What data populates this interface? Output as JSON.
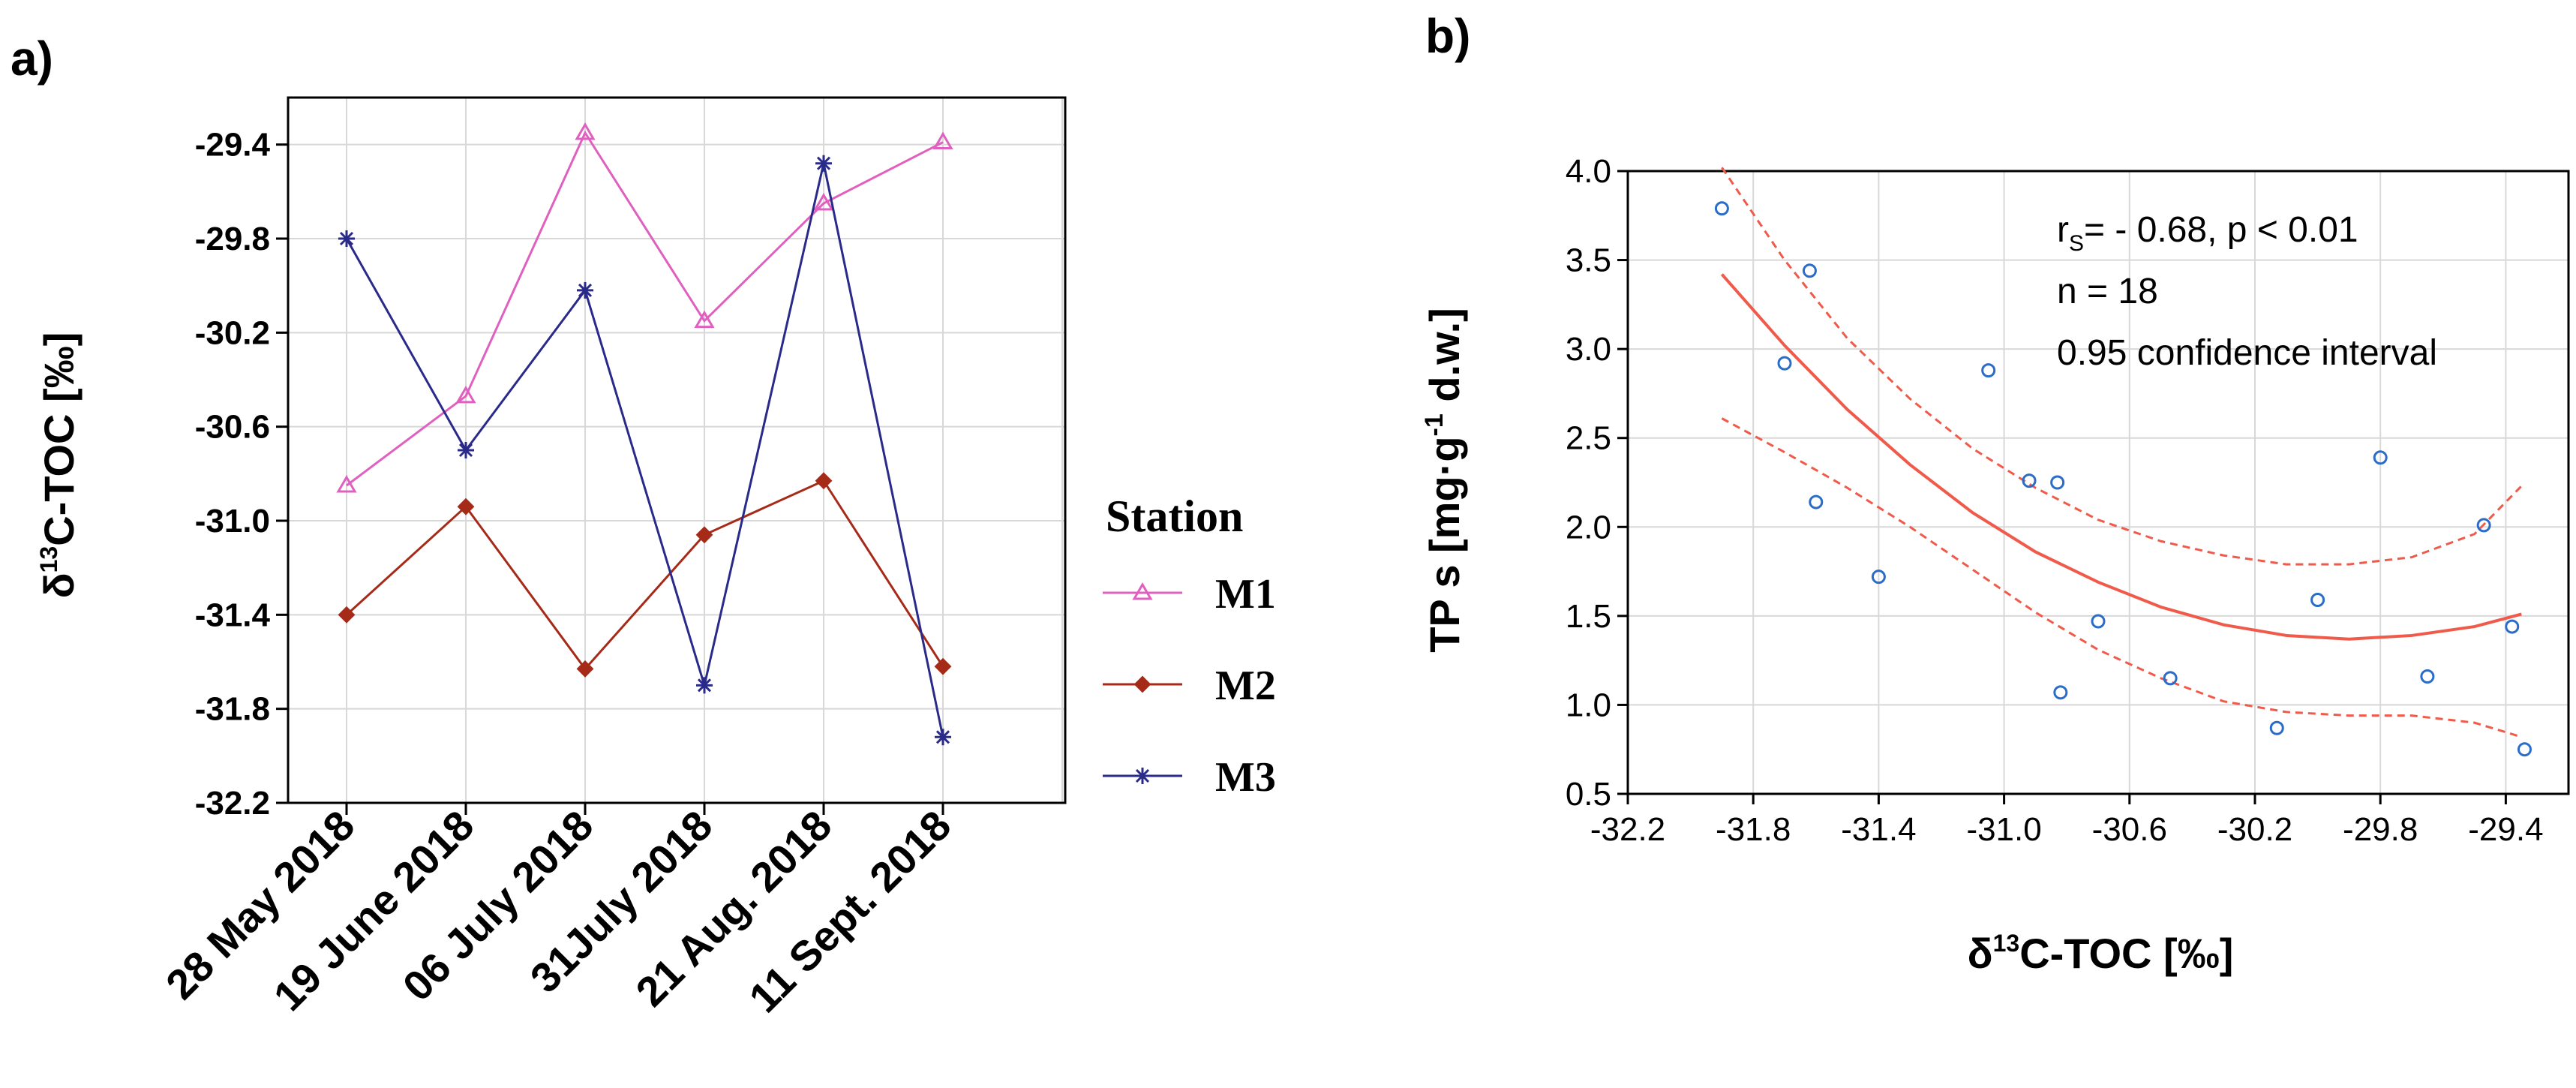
{
  "chart_data": [
    {
      "panel_label": "a)",
      "type": "line",
      "categories": [
        "28 May 2018",
        "19 June 2018",
        "06 July 2018",
        "31July 2018",
        "21 Aug. 2018",
        "11 Sept. 2018"
      ],
      "series": [
        {
          "name": "M1",
          "color": "#e060c0",
          "marker": "triangle",
          "values": [
            -30.85,
            -30.47,
            -29.35,
            -30.15,
            -29.65,
            -29.39
          ]
        },
        {
          "name": "M2",
          "color": "#a52a18",
          "marker": "diamond",
          "values": [
            -31.4,
            -30.94,
            -31.63,
            -31.06,
            -30.83,
            -31.62
          ]
        },
        {
          "name": "M3",
          "color": "#2a2a8a",
          "marker": "asterisk",
          "values": [
            -29.8,
            -30.7,
            -30.02,
            -31.7,
            -29.48,
            -31.92
          ]
        }
      ],
      "title": "",
      "xlabel": "",
      "ylabel_prefix": "δ",
      "ylabel_sup": "13",
      "ylabel_main": "C-TOC [‰]",
      "ylim": [
        -32.2,
        -29.2
      ],
      "yticks": [
        "-29.4",
        "-29.8",
        "-30.2",
        "-30.6",
        "-31.0",
        "-31.4",
        "-31.8",
        "-32.2"
      ],
      "ytick_values": [
        -29.4,
        -29.8,
        -30.2,
        -30.6,
        -31.0,
        -31.4,
        -31.8,
        -32.2
      ],
      "legend_title": "Station",
      "legend_position": "right",
      "grid": true
    },
    {
      "panel_label": "b)",
      "type": "scatter",
      "x": [
        -31.9,
        -31.7,
        -31.62,
        -31.6,
        -31.4,
        -31.05,
        -30.92,
        -30.83,
        -30.82,
        -30.7,
        -30.47,
        -30.13,
        -30.0,
        -29.8,
        -29.65,
        -29.47,
        -29.38,
        -29.34
      ],
      "y": [
        3.79,
        2.92,
        3.44,
        2.14,
        1.72,
        2.88,
        2.26,
        2.25,
        1.07,
        1.47,
        1.15,
        0.87,
        1.59,
        2.39,
        1.16,
        2.01,
        1.44,
        0.75
      ],
      "fit_x": [
        -31.9,
        -31.7,
        -31.5,
        -31.3,
        -31.1,
        -30.9,
        -30.7,
        -30.5,
        -30.3,
        -30.1,
        -29.9,
        -29.7,
        -29.5,
        -29.35
      ],
      "fit_y": [
        3.42,
        3.02,
        2.66,
        2.35,
        2.08,
        1.86,
        1.69,
        1.55,
        1.45,
        1.39,
        1.37,
        1.39,
        1.44,
        1.51
      ],
      "ci_upper": [
        4.02,
        3.5,
        3.06,
        2.72,
        2.44,
        2.22,
        2.04,
        1.92,
        1.84,
        1.79,
        1.79,
        1.83,
        1.96,
        2.23
      ],
      "ci_lower": [
        2.61,
        2.42,
        2.22,
        2.0,
        1.76,
        1.52,
        1.31,
        1.15,
        1.02,
        0.96,
        0.94,
        0.94,
        0.9,
        0.82
      ],
      "series_color": "#2a6cc8",
      "fit_color": "#f05a4a",
      "xlabel_prefix": "δ",
      "xlabel_sup": "13",
      "xlabel_main": "C-TOC [‰]",
      "ylabel_a": "TP s [mg·g",
      "ylabel_sup": "-1",
      "ylabel_b": " d.w.]",
      "xlim": [
        -32.2,
        -29.2
      ],
      "ylim": [
        0.5,
        4.0
      ],
      "xticks": [
        "-32.2",
        "-31.8",
        "-31.4",
        "-31.0",
        "-30.6",
        "-30.2",
        "-29.8",
        "-29.4"
      ],
      "xtick_values": [
        -32.2,
        -31.8,
        -31.4,
        -31.0,
        -30.6,
        -30.2,
        -29.8,
        -29.4
      ],
      "yticks": [
        "4.0",
        "3.5",
        "3.0",
        "2.5",
        "2.0",
        "1.5",
        "1.0",
        "0.5"
      ],
      "ytick_values": [
        4.0,
        3.5,
        3.0,
        2.5,
        2.0,
        1.5,
        1.0,
        0.5
      ],
      "annotation": {
        "r_prefix": "r",
        "r_sub": "S",
        "r_text": "= - 0.68, p < 0.01",
        "n_text": "n = 18",
        "ci_text": "0.95 confidence interval"
      },
      "grid": true
    }
  ]
}
